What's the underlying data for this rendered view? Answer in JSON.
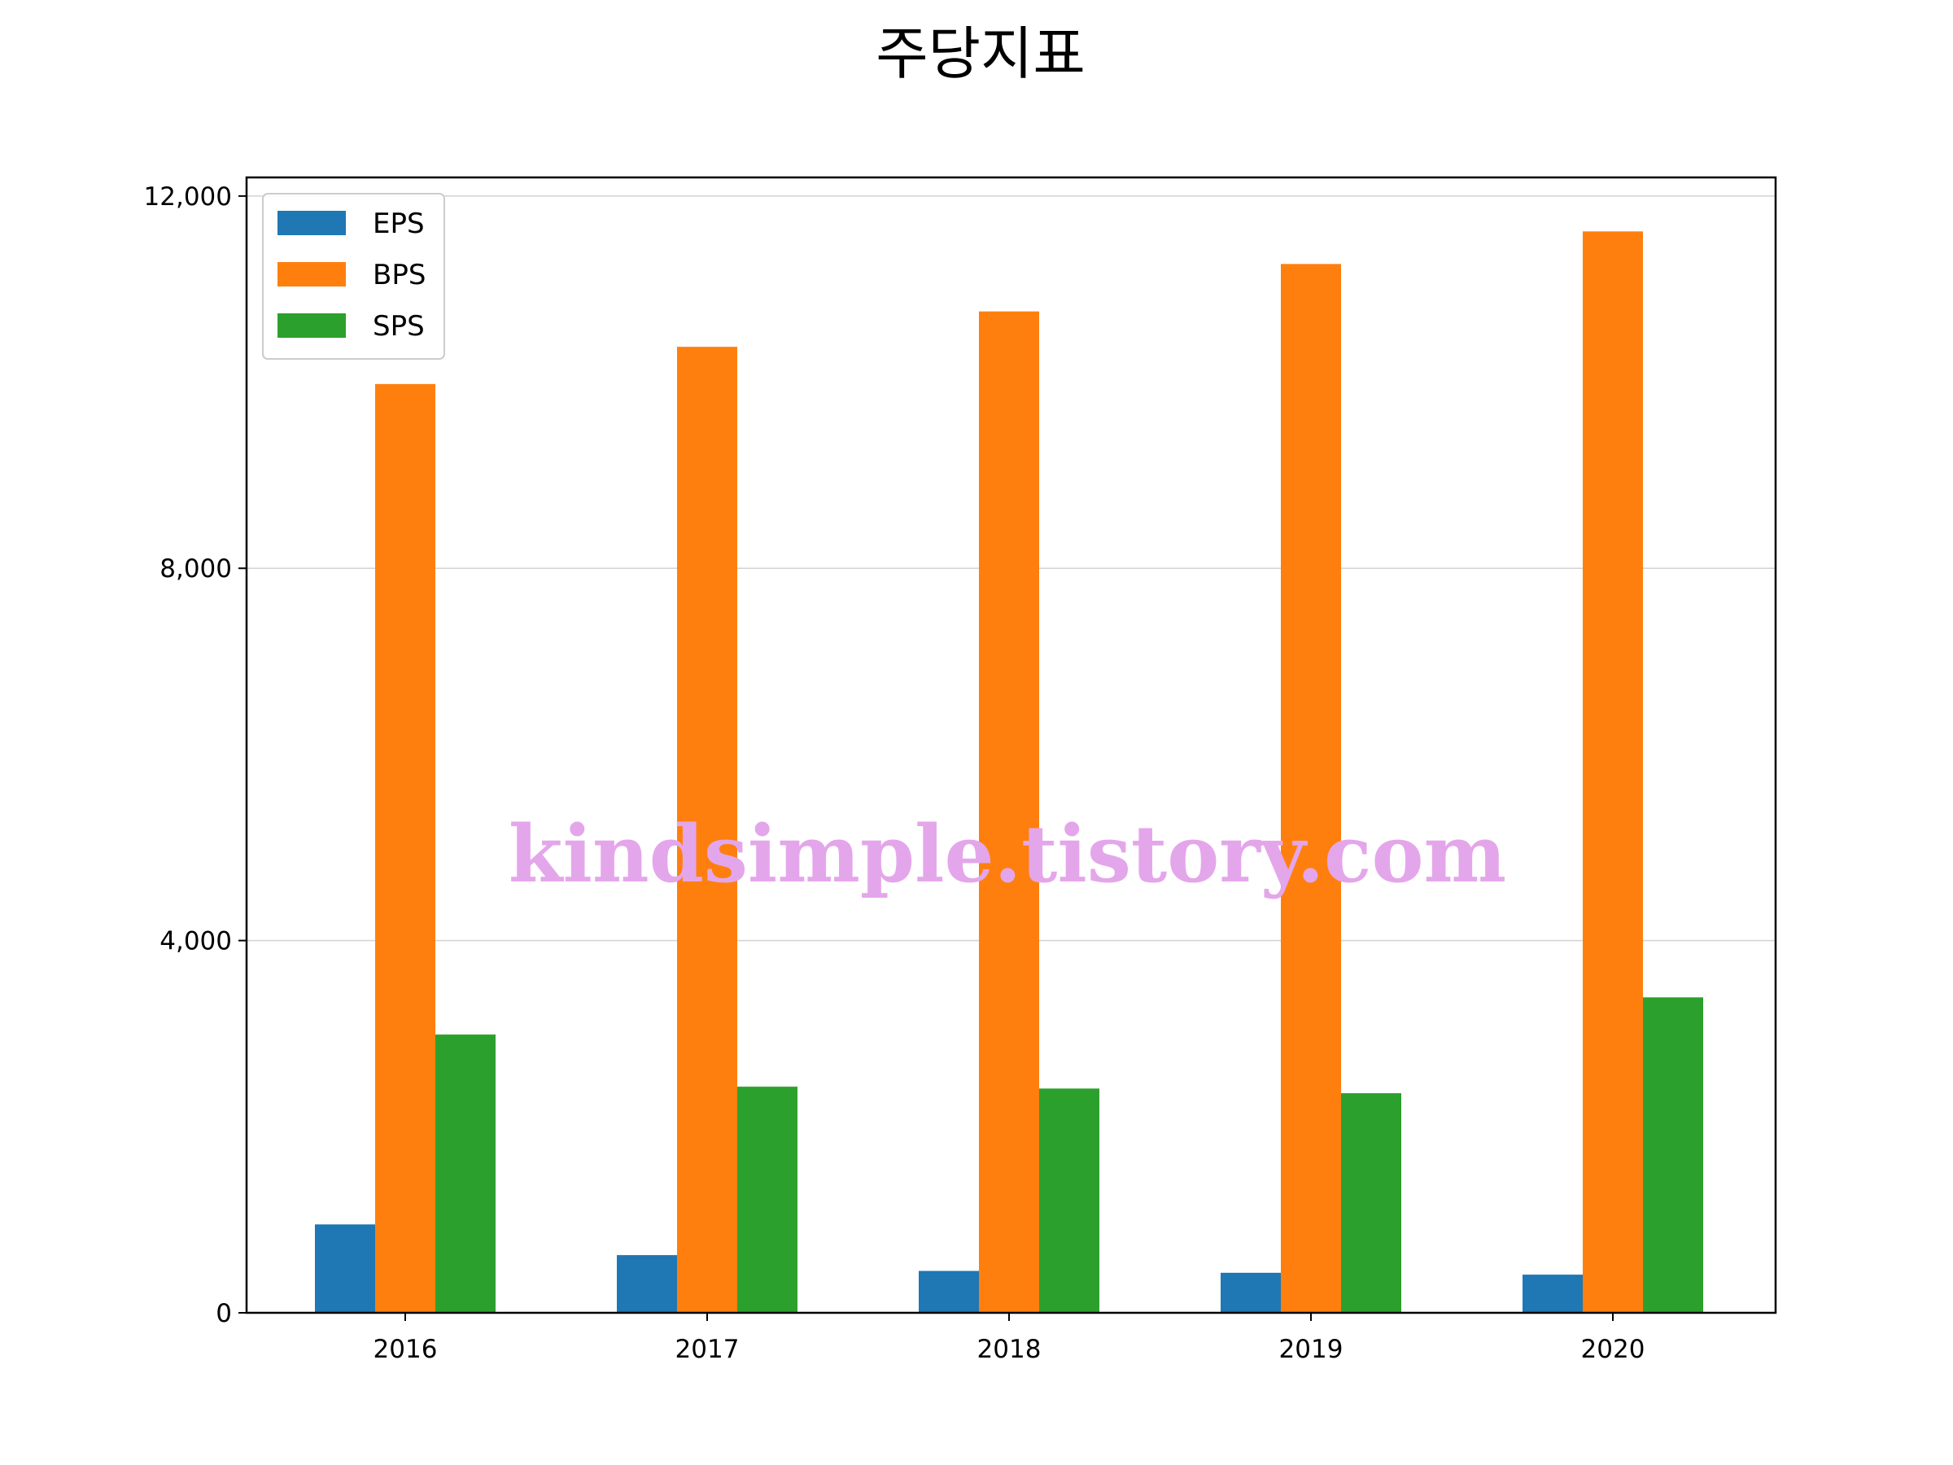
{
  "chart_data": {
    "type": "bar",
    "title": "주당지표",
    "xlabel": "",
    "ylabel": "",
    "categories": [
      "2016",
      "2017",
      "2018",
      "2019",
      "2020"
    ],
    "series": [
      {
        "name": "EPS",
        "color": "#1f77b4",
        "values": [
          950,
          620,
          450,
          430,
          410
        ]
      },
      {
        "name": "BPS",
        "color": "#ff7f0e",
        "values": [
          9980,
          10380,
          10760,
          11270,
          11620
        ]
      },
      {
        "name": "SPS",
        "color": "#2ca02c",
        "values": [
          2990,
          2430,
          2410,
          2360,
          3390
        ]
      }
    ],
    "ylim": [
      0,
      12200
    ],
    "yticks": [
      0,
      4000,
      8000,
      12000
    ],
    "ytick_labels": [
      "0",
      "4,000",
      "8,000",
      "12,000"
    ],
    "grid": "horizontal",
    "legend_position": "top-left"
  },
  "watermark": "kindsimple.tistory.com"
}
